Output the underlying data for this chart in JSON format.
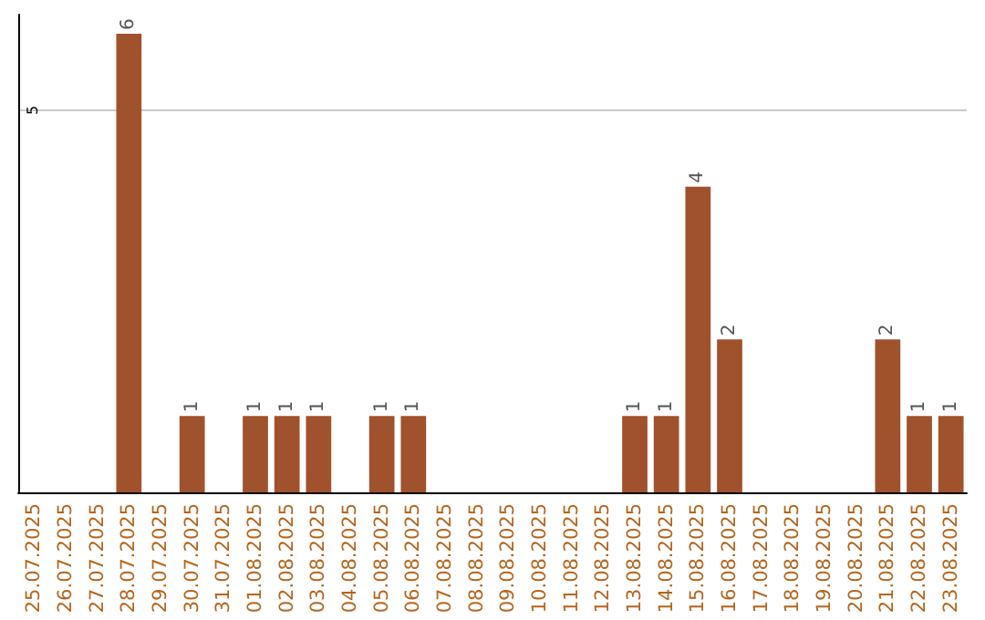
{
  "chart_data": {
    "type": "bar",
    "categories": [
      "25.07.2025",
      "26.07.2025",
      "27.07.2025",
      "28.07.2025",
      "29.07.2025",
      "30.07.2025",
      "31.07.2025",
      "01.08.2025",
      "02.08.2025",
      "03.08.2025",
      "04.08.2025",
      "05.08.2025",
      "06.08.2025",
      "07.08.2025",
      "08.08.2025",
      "09.08.2025",
      "10.08.2025",
      "11.08.2025",
      "12.08.2025",
      "13.08.2025",
      "14.08.2025",
      "15.08.2025",
      "16.08.2025",
      "17.08.2025",
      "18.08.2025",
      "19.08.2025",
      "20.08.2025",
      "21.08.2025",
      "22.08.2025",
      "23.08.2025"
    ],
    "values": [
      0,
      0,
      0,
      6,
      0,
      1,
      0,
      1,
      1,
      1,
      0,
      1,
      1,
      0,
      0,
      0,
      0,
      0,
      0,
      1,
      1,
      4,
      2,
      0,
      0,
      0,
      0,
      2,
      1,
      1
    ],
    "value_labels": [
      null,
      null,
      null,
      "6",
      null,
      "1",
      null,
      "1",
      "1",
      "1",
      null,
      "1",
      "1",
      null,
      null,
      null,
      null,
      null,
      null,
      "1",
      "1",
      "4",
      "2",
      null,
      null,
      null,
      null,
      "2",
      "1",
      "1"
    ],
    "color": "#a0522d",
    "ylim": [
      0,
      6.25
    ],
    "yticks": [
      5
    ],
    "grid": "y"
  }
}
